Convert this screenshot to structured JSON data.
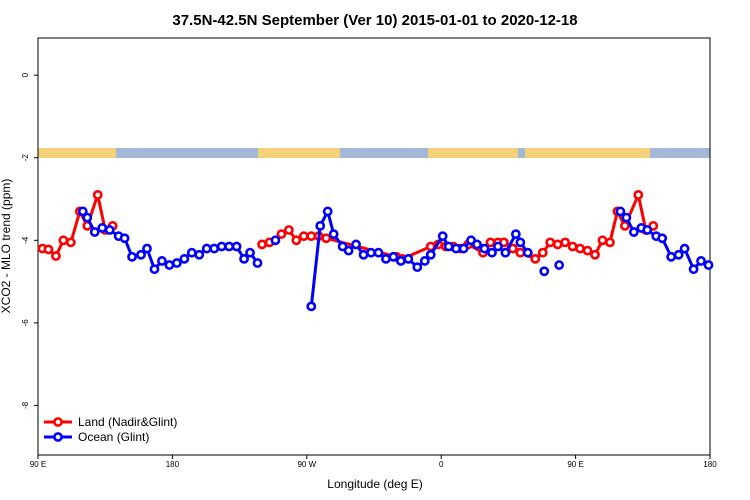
{
  "chart_data": {
    "type": "line",
    "title": "37.5N-42.5N September (Ver 10)   2015-01-01 to 2020-12-18",
    "x_label": "Longitude (deg E)",
    "y_label": "XCO2 - MLO trend (ppm)",
    "xlim": [
      90,
      540
    ],
    "ylim": [
      -9.2,
      0.9
    ],
    "xticks": [
      {
        "value": 90,
        "label": "90 E"
      },
      {
        "value": 180,
        "label": "180"
      },
      {
        "value": 270,
        "label": "90 W"
      },
      {
        "value": 360,
        "label": "0"
      },
      {
        "value": 450,
        "label": "90 E"
      },
      {
        "value": 540,
        "label": "180"
      }
    ],
    "yticks": [
      0,
      -2,
      -4,
      -6,
      -8
    ],
    "legend": "bottom-left",
    "series": [
      {
        "name": "Land (Nadir&Glint)",
        "color": "#ff0000",
        "x": [
          93,
          97,
          102,
          107,
          112,
          118,
          123,
          130,
          135,
          140,
          145,
          240,
          245,
          253,
          258,
          263,
          268,
          273,
          278,
          283,
          330,
          334,
          353,
          358,
          363,
          368,
          373,
          378,
          388,
          393,
          398,
          402,
          408,
          413,
          423,
          428,
          433,
          438,
          443,
          448,
          453,
          458,
          463,
          468,
          473,
          478,
          483,
          492,
          497,
          502
        ],
        "values": [
          -4.2,
          -4.22,
          -4.38,
          -4.0,
          -4.05,
          -3.3,
          -3.65,
          -2.9,
          -3.75,
          -3.65,
          null,
          -4.1,
          -4.05,
          -3.85,
          -3.75,
          -4.0,
          -3.9,
          -3.9,
          -3.9,
          -3.95,
          -4.4,
          -4.45,
          -4.15,
          -4.1,
          -4.15,
          -4.15,
          -4.2,
          -4.1,
          -4.3,
          -4.05,
          -4.05,
          -4.05,
          -4.2,
          -4.3,
          -4.45,
          -4.3,
          -4.05,
          -4.1,
          -4.05,
          -4.15,
          -4.2,
          -4.25,
          -4.35,
          -4.0,
          -4.05,
          -3.3,
          -3.65,
          -2.9,
          -3.75,
          -3.65
        ]
      },
      {
        "name": "Ocean (Glint)",
        "color": "#0000ff",
        "x": [
          120,
          123,
          128,
          133,
          138,
          144,
          148,
          153,
          159,
          163,
          168,
          173,
          178,
          183,
          188,
          193,
          198,
          203,
          208,
          213,
          218,
          223,
          228,
          232,
          237,
          243,
          249,
          260,
          273,
          279,
          284,
          288,
          294,
          298,
          303,
          308,
          313,
          318,
          323,
          328,
          333,
          338,
          344,
          349,
          353,
          361,
          365,
          370,
          375,
          380,
          384,
          389,
          394,
          398,
          403,
          410,
          413,
          418,
          423,
          429,
          433,
          439,
          470,
          480,
          484,
          489,
          494,
          498,
          504,
          508,
          514,
          519,
          523,
          529,
          534,
          539
        ],
        "values": [
          -3.3,
          -3.45,
          -3.8,
          -3.7,
          -3.75,
          -3.9,
          -3.95,
          -4.4,
          -4.35,
          -4.2,
          -4.7,
          -4.5,
          -4.6,
          -4.55,
          -4.45,
          -4.3,
          -4.35,
          -4.2,
          -4.2,
          -4.15,
          -4.15,
          -4.15,
          -4.45,
          -4.3,
          -4.55,
          null,
          -4.0,
          null,
          -5.6,
          -3.65,
          -3.3,
          -3.85,
          -4.15,
          -4.25,
          -4.1,
          -4.35,
          -4.3,
          -4.3,
          -4.45,
          -4.4,
          -4.5,
          -4.45,
          -4.65,
          -4.5,
          -4.35,
          -3.9,
          -4.15,
          -4.2,
          -4.2,
          -4.0,
          -4.1,
          -4.2,
          -4.3,
          -4.15,
          -4.3,
          -3.85,
          -4.05,
          -4.3,
          null,
          -4.75,
          null,
          -4.6,
          null,
          -3.3,
          -3.45,
          -3.8,
          -3.7,
          -3.75,
          -3.9,
          -3.95,
          -4.4,
          -4.35,
          -4.2,
          -4.7,
          -4.5,
          -4.6
        ]
      }
    ]
  }
}
